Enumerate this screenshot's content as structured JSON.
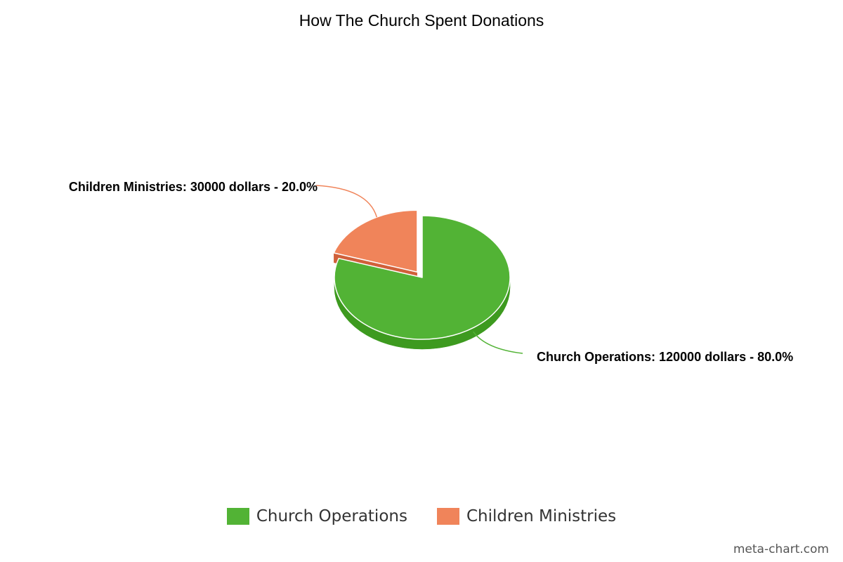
{
  "chart_data": {
    "type": "pie",
    "title": "How The Church Spent Donations",
    "unit": "dollars",
    "slices": [
      {
        "name": "Church Operations",
        "value": 120000,
        "percent": 80.0,
        "label": "Church Operations: 120000 dollars - 80.0%",
        "color": "#52b335",
        "side_color": "#3d9a1f"
      },
      {
        "name": "Children Ministries",
        "value": 30000,
        "percent": 20.0,
        "label": "Children Ministries: 30000 dollars - 20.0%",
        "color": "#f0845a",
        "side_color": "#d0603a",
        "exploded": true
      }
    ],
    "legend_position": "bottom"
  },
  "credit": "meta-chart.com"
}
